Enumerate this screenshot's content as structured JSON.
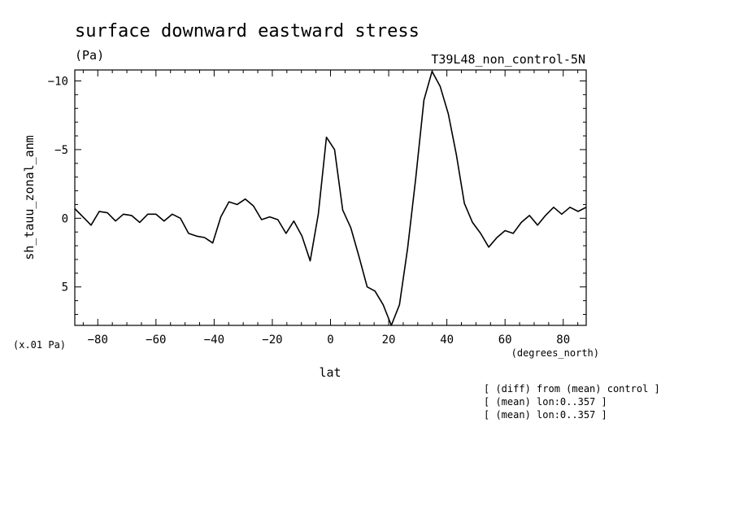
{
  "chart_data": {
    "type": "line",
    "title": "surface downward eastward stress",
    "units": "(Pa)",
    "run_label": "T39L48_non_control-5N",
    "ylabel": "sh_tauu_zonal_anm",
    "xlabel": "lat",
    "xunits": "(degrees_north)",
    "yscale_note": "(x.01 Pa)",
    "y_inverted": true,
    "xlim": [
      -87.9,
      87.9
    ],
    "ylim": [
      7.8,
      -10.8
    ],
    "xticks": [
      -80,
      -60,
      -40,
      -20,
      0,
      20,
      40,
      60,
      80
    ],
    "xtick_labels": [
      "−80",
      "−60",
      "−40",
      "−20",
      "0",
      "20",
      "40",
      "60",
      "80"
    ],
    "yticks": [
      -10,
      -5,
      0,
      5
    ],
    "ytick_labels": [
      "−10",
      "−5",
      "0",
      "5"
    ],
    "notes": [
      "[ (diff) from (mean) control ]",
      "[ (mean) lon:0..357 ]",
      "[ (mean) lon:0..357 ]"
    ],
    "series": [
      {
        "x": [
          -87.9,
          -85.1,
          -82.3,
          -79.5,
          -76.7,
          -73.9,
          -71.2,
          -68.4,
          -65.6,
          -62.8,
          -60.0,
          -57.2,
          -54.4,
          -51.6,
          -48.8,
          -46.0,
          -43.3,
          -40.5,
          -37.7,
          -34.9,
          -32.1,
          -29.3,
          -26.5,
          -23.7,
          -20.9,
          -18.1,
          -15.3,
          -12.6,
          -9.8,
          -7.0,
          -4.2,
          -1.4,
          1.4,
          4.2,
          7.0,
          9.8,
          12.6,
          15.3,
          18.1,
          20.9,
          23.7,
          26.5,
          29.3,
          32.1,
          34.9,
          37.7,
          40.5,
          43.3,
          46.0,
          48.8,
          51.6,
          54.4,
          57.2,
          60.0,
          62.8,
          65.6,
          68.4,
          71.2,
          73.9,
          76.7,
          79.5,
          82.3,
          85.1,
          87.9
        ],
        "y": [
          -0.7,
          -0.1,
          0.5,
          -0.5,
          -0.4,
          0.2,
          -0.3,
          -0.2,
          0.3,
          -0.3,
          -0.3,
          0.2,
          -0.3,
          0.0,
          1.1,
          1.3,
          1.4,
          1.8,
          -0.1,
          -1.2,
          -1.0,
          -1.4,
          -0.9,
          0.1,
          -0.1,
          0.1,
          1.1,
          0.2,
          1.3,
          3.1,
          -0.3,
          -5.9,
          -5.0,
          -0.6,
          0.7,
          2.8,
          5.0,
          5.3,
          6.3,
          7.8,
          6.3,
          2.2,
          -2.9,
          -8.6,
          -10.7,
          -9.6,
          -7.6,
          -4.6,
          -1.1,
          0.3,
          1.1,
          2.1,
          1.4,
          0.9,
          1.1,
          0.3,
          -0.2,
          0.5,
          -0.2,
          -0.8,
          -0.3,
          -0.8,
          -0.5,
          -0.8
        ]
      }
    ]
  }
}
